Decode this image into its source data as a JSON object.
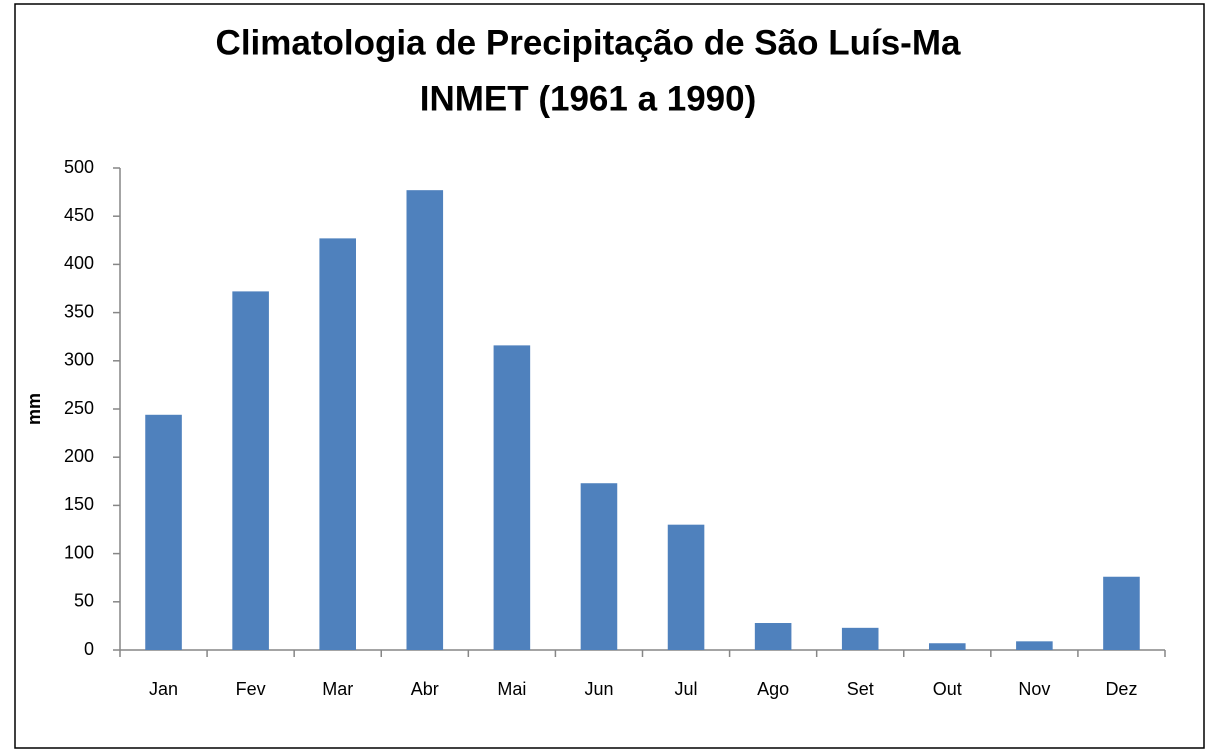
{
  "chart_data": {
    "type": "bar",
    "title": "Climatologia de Precipitação de São Luís-Ma",
    "subtitle": "INMET (1961 a 1990)",
    "y_label": "mm",
    "categories": [
      "Jan",
      "Fev",
      "Mar",
      "Abr",
      "Mai",
      "Jun",
      "Jul",
      "Ago",
      "Set",
      "Out",
      "Nov",
      "Dez"
    ],
    "values": [
      244,
      372,
      427,
      477,
      316,
      173,
      130,
      28,
      23,
      7,
      9,
      76
    ],
    "color": "#4f81bd",
    "ylim": [
      0,
      500
    ],
    "yticks": [
      0,
      50,
      100,
      150,
      200,
      250,
      300,
      350,
      400,
      450,
      500
    ],
    "grid": false
  }
}
